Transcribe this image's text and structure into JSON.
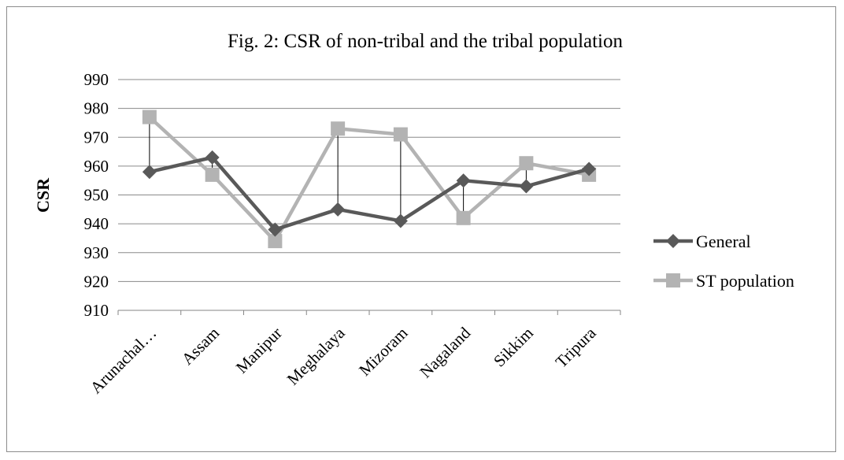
{
  "chart_data": {
    "type": "line",
    "title": "Fig. 2: CSR of non-tribal and the tribal population",
    "xlabel": "",
    "ylabel": "CSR",
    "ylim": [
      910,
      990
    ],
    "ytick_step": 10,
    "grid": true,
    "legend_position": "right",
    "categories": [
      "Arunachal…",
      "Assam",
      "Manipur",
      "Meghalaya",
      "Mizoram",
      "Nagaland",
      "Sikkim",
      "Tripura"
    ],
    "series": [
      {
        "name": "General",
        "values": [
          958,
          963,
          938,
          945,
          941,
          955,
          953,
          959
        ],
        "color": "#595959",
        "marker": "diamond"
      },
      {
        "name": "ST population",
        "values": [
          977,
          957,
          934,
          973,
          971,
          942,
          961,
          957
        ],
        "color": "#b3b3b3",
        "marker": "square"
      }
    ],
    "annotation": "vertical drop lines connect the two series at each category"
  }
}
